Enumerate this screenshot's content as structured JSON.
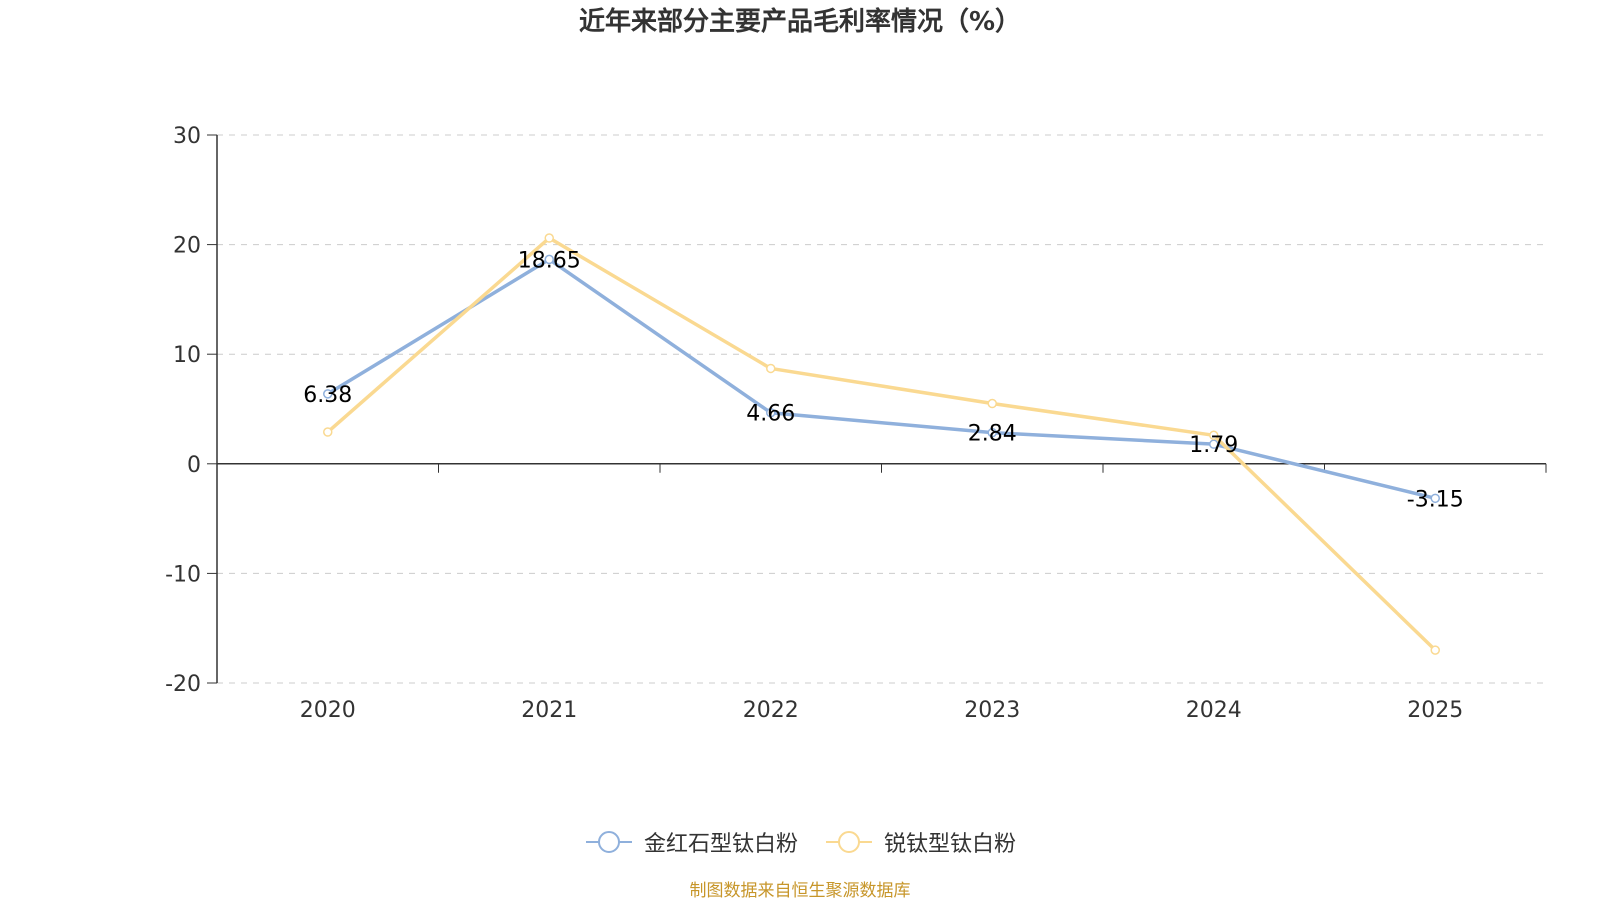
{
  "title": "近年来部分主要产品毛利率情况（%）",
  "source": "制图数据来自恒生聚源数据库",
  "colors": {
    "series1": "#8fb0dc",
    "series2": "#fad991",
    "grid": "#cccccc",
    "axis": "#333333",
    "tick_text": "#333333",
    "label_text": "#000000"
  },
  "chart_data": {
    "type": "line",
    "title": "近年来部分主要产品毛利率情况（%）",
    "xlabel": "",
    "ylabel": "",
    "categories": [
      "2020",
      "2021",
      "2022",
      "2023",
      "2024",
      "2025"
    ],
    "ylim": [
      -20,
      30
    ],
    "yticks": [
      "30",
      "20",
      "10",
      "0",
      "-10",
      "-20"
    ],
    "grid": true,
    "legend_position": "bottom",
    "series": [
      {
        "name": "金红石型钛白粉",
        "values": [
          6.38,
          18.65,
          4.66,
          2.84,
          1.79,
          -3.15
        ],
        "data_labels": [
          "6.38",
          "18.65",
          "4.66",
          "2.84",
          "1.79",
          "-3.15"
        ],
        "color": "#8fb0dc"
      },
      {
        "name": "锐钛型钛白粉",
        "values": [
          2.9,
          20.6,
          8.7,
          5.5,
          2.6,
          -17.0
        ],
        "color": "#fad991"
      }
    ]
  }
}
